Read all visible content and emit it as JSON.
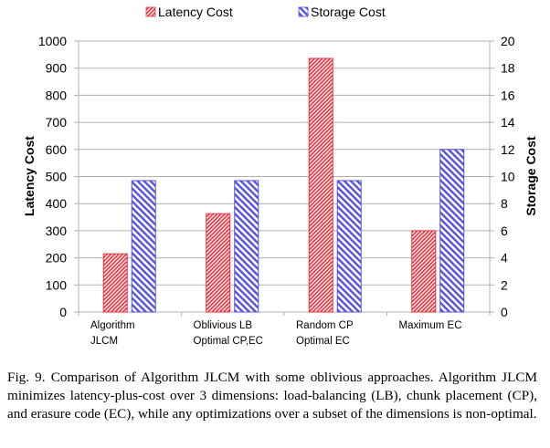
{
  "chart_data": {
    "type": "bar",
    "categories": [
      [
        "Algorithm",
        "JLCM"
      ],
      [
        "Oblivious LB",
        "Optimal CP,EC"
      ],
      [
        "Random CP",
        "Optimal EC"
      ],
      [
        "Maximum EC"
      ]
    ],
    "series": [
      {
        "name": "Latency Cost",
        "axis": "left",
        "color": "#e8343f",
        "values": [
          215,
          363,
          936,
          300
        ]
      },
      {
        "name": "Storage Cost",
        "axis": "right",
        "color": "#5550e0",
        "values": [
          9.7,
          9.7,
          9.7,
          12.0
        ]
      }
    ],
    "ylabel": "Latency Cost",
    "ylabel_right": "Storage Cost",
    "ylim": [
      0,
      1000
    ],
    "ylim_right": [
      0,
      20
    ],
    "yticks": [
      "0",
      "100",
      "200",
      "300",
      "400",
      "500",
      "600",
      "700",
      "800",
      "900",
      "1000"
    ],
    "yticks_right": [
      "0",
      "2",
      "4",
      "6",
      "8",
      "10",
      "12",
      "14",
      "16",
      "18",
      "20"
    ],
    "grid": true,
    "legend_position": "top"
  },
  "caption": "Fig. 9.   Comparison of Algorithm JLCM with some oblivious approaches. Algorithm JLCM minimizes latency-plus-cost over 3 dimensions: load-balancing (LB), chunk placement (CP), and erasure code (EC), while any optimizations over a subset of the dimensions is non-optimal."
}
